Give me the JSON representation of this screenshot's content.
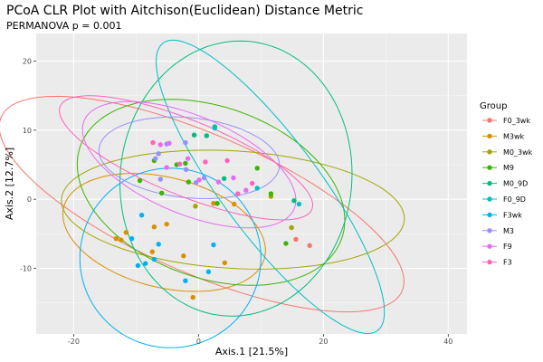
{
  "chart_data": {
    "type": "scatter",
    "title": "PCoA CLR Plot with Aitchison(Euclidean) Distance Metric",
    "subtitle": "PERMANOVA p = 0.001",
    "xlabel": "Axis.1  [21.5%]",
    "ylabel": "Axis.2  [12.7%]",
    "xlim": [
      -26,
      43
    ],
    "ylim": [
      -19.5,
      24
    ],
    "xticks": [
      -20,
      0,
      20,
      40
    ],
    "yticks": [
      -10,
      0,
      10,
      20
    ],
    "legend_title": "Group",
    "legend_position": "right",
    "series": [
      {
        "name": "F0_3wk",
        "color": "#F8766D",
        "points": [
          [
            17.8,
            -6.7
          ],
          [
            15.6,
            -5.8
          ]
        ],
        "ellipse": {
          "cx": 0.5,
          "cy": -0.7,
          "rx": 34.5,
          "ry": 10.2,
          "angle": -21
        }
      },
      {
        "name": "M3wk",
        "color": "#D89000",
        "points": [
          [
            -13.2,
            -5.7
          ],
          [
            -12.4,
            -5.9
          ],
          [
            -11.6,
            -4.8
          ],
          [
            -7.4,
            -7.6
          ],
          [
            -7.1,
            -4.0
          ],
          [
            -5.1,
            -3.6
          ],
          [
            -2.4,
            -8.2
          ],
          [
            -0.9,
            -14.2
          ],
          [
            2.4,
            -0.6
          ],
          [
            4.2,
            -9.2
          ],
          [
            5.7,
            -0.7
          ]
        ],
        "ellipse": {
          "cx": -5.5,
          "cy": -4.8,
          "rx": 16.5,
          "ry": 8.0,
          "angle": -12
        }
      },
      {
        "name": "M0_3wk",
        "color": "#A3A500",
        "points": [
          [
            -0.5,
            -1.0
          ],
          [
            11.6,
            0.4
          ],
          [
            14.9,
            -4.1
          ]
        ],
        "ellipse": {
          "cx": 5.5,
          "cy": -1.5,
          "rx": 27.5,
          "ry": 8.5,
          "angle": -3
        }
      },
      {
        "name": "M9",
        "color": "#39B600",
        "points": [
          [
            -9.4,
            2.7
          ],
          [
            -7.1,
            5.6
          ],
          [
            -5.9,
            0.9
          ],
          [
            -3.5,
            5.0
          ],
          [
            -2.1,
            5.2
          ],
          [
            -1.6,
            2.5
          ],
          [
            3.0,
            -0.6
          ],
          [
            9.4,
            4.5
          ],
          [
            11.6,
            0.8
          ],
          [
            14.0,
            -6.4
          ]
        ],
        "ellipse": {
          "cx": 2.0,
          "cy": 1.0,
          "rx": 22.0,
          "ry": 12.5,
          "angle": -16
        }
      },
      {
        "name": "M0_9D",
        "color": "#00BF7D",
        "points": [
          [
            -0.7,
            9.3
          ],
          [
            1.3,
            9.2
          ],
          [
            2.6,
            10.5
          ],
          [
            4.1,
            3.0
          ],
          [
            15.3,
            -0.2
          ]
        ],
        "ellipse": {
          "cx": 6.0,
          "cy": 3.0,
          "rx": 18.5,
          "ry": 20.0,
          "angle": -14
        }
      },
      {
        "name": "F0_9D",
        "color": "#00BFC4",
        "points": [
          [
            2.6,
            10.3
          ],
          [
            9.4,
            1.6
          ],
          [
            16.1,
            -0.7
          ]
        ],
        "ellipse": {
          "cx": 11.5,
          "cy": 1.8,
          "rx": 27.0,
          "ry": 7.5,
          "angle": -50
        }
      },
      {
        "name": "F3wk",
        "color": "#00B0F6",
        "points": [
          [
            -9.1,
            -2.3
          ],
          [
            -10.7,
            -5.7
          ],
          [
            -6.4,
            -6.5
          ],
          [
            -7.1,
            -8.7
          ],
          [
            -8.5,
            -9.3
          ],
          [
            -9.7,
            -9.6
          ],
          [
            -2.1,
            -11.8
          ],
          [
            2.4,
            -6.6
          ],
          [
            1.6,
            -10.5
          ]
        ],
        "ellipse": {
          "cx": -4.5,
          "cy": -8.5,
          "rx": 14.5,
          "ry": 13.0,
          "angle": 0
        }
      },
      {
        "name": "M3",
        "color": "#9590FF",
        "points": [
          [
            -6.9,
            5.9
          ],
          [
            -6.4,
            6.6
          ],
          [
            -5.1,
            8.0
          ],
          [
            -2.1,
            8.2
          ],
          [
            -6.1,
            2.9
          ],
          [
            -2.0,
            4.3
          ],
          [
            -0.4,
            2.4
          ],
          [
            0.9,
            3.1
          ]
        ],
        "ellipse": {
          "cx": -1.5,
          "cy": 6.0,
          "rx": 14.5,
          "ry": 5.8,
          "angle": -5
        }
      },
      {
        "name": "F9",
        "color": "#E76BF3",
        "points": [
          [
            -6.1,
            7.9
          ],
          [
            -4.7,
            8.1
          ],
          [
            -5.1,
            4.6
          ],
          [
            -1.7,
            5.9
          ],
          [
            0.1,
            2.8
          ],
          [
            3.2,
            2.5
          ],
          [
            5.6,
            3.1
          ],
          [
            7.6,
            1.3
          ]
        ],
        "ellipse": {
          "cx": -1.5,
          "cy": 5.0,
          "rx": 18.0,
          "ry": 7.2,
          "angle": -20
        }
      },
      {
        "name": "F3",
        "color": "#FF62BC",
        "points": [
          [
            -7.3,
            8.2
          ],
          [
            -3.0,
            5.1
          ],
          [
            1.1,
            5.4
          ],
          [
            4.6,
            5.6
          ],
          [
            6.3,
            0.8
          ],
          [
            8.6,
            2.3
          ]
        ],
        "ellipse": {
          "cx": -2.0,
          "cy": 6.0,
          "rx": 21.5,
          "ry": 5.5,
          "angle": -20
        }
      }
    ]
  }
}
